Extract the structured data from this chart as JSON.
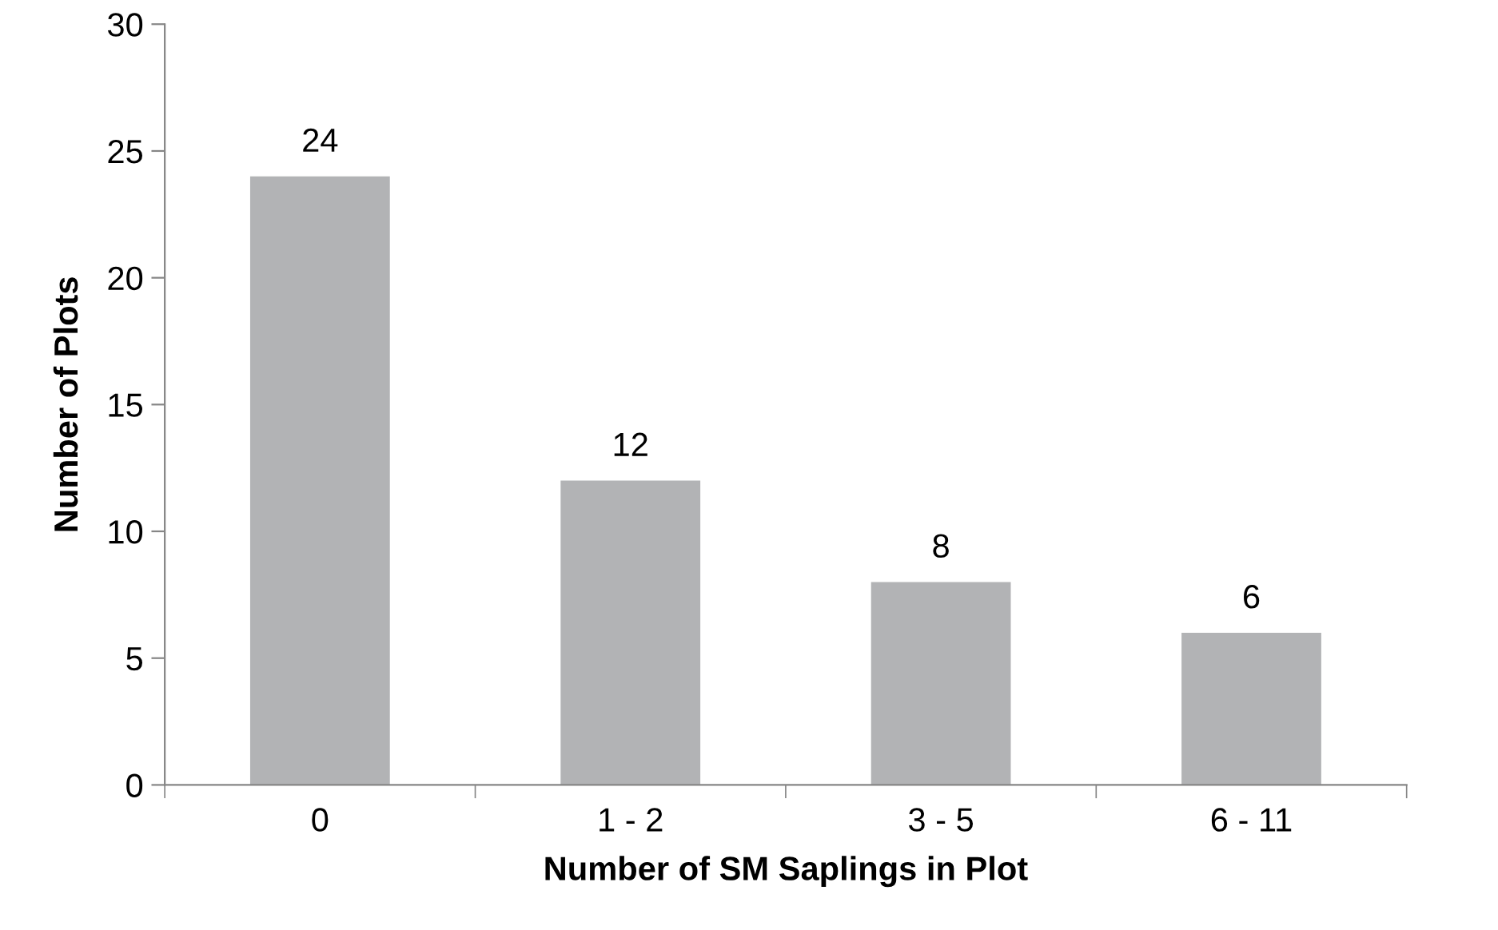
{
  "chart_data": {
    "type": "bar",
    "xlabel": "Number of SM Saplings in Plot",
    "ylabel": "Number of Plots",
    "categories": [
      "0",
      "1 - 2",
      "3 - 5",
      "6 - 11"
    ],
    "values": [
      24,
      12,
      8,
      6
    ],
    "color": "#b2b3b5",
    "ylim": [
      0,
      30
    ],
    "yticks": [
      0,
      5,
      10,
      15,
      20,
      25,
      30
    ],
    "grid": false,
    "data_labels": true
  }
}
